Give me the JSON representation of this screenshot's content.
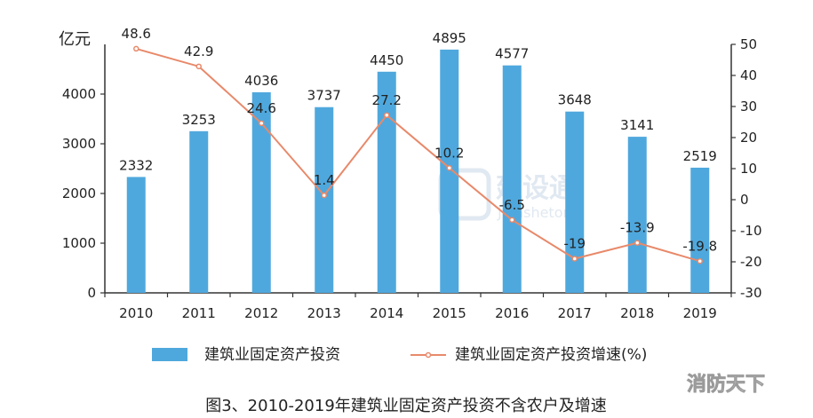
{
  "chart_data": {
    "type": "bar+line",
    "title": "",
    "caption": "图3、2010-2019年建筑业固定资产投资不含农户及增速",
    "y_left_unit": "亿元",
    "categories": [
      "2010",
      "2011",
      "2012",
      "2013",
      "2014",
      "2015",
      "2016",
      "2017",
      "2018",
      "2019"
    ],
    "series": [
      {
        "name": "建筑业固定资产投资",
        "type": "bar",
        "axis": "left",
        "values": [
          2332,
          3253,
          4036,
          3737,
          4450,
          4895,
          4577,
          3648,
          3141,
          2519
        ],
        "color": "#4fa8dd"
      },
      {
        "name": "建筑业固定资产投资增速(%)",
        "type": "line",
        "axis": "right",
        "values": [
          48.6,
          42.9,
          24.6,
          1.4,
          27.2,
          10.2,
          -6.5,
          -19,
          -13.9,
          -19.8
        ],
        "color": "#e8896a"
      }
    ],
    "y_left": {
      "min": 0,
      "max": 5000,
      "ticks": [
        0,
        1000,
        2000,
        3000,
        4000
      ]
    },
    "y_right": {
      "min": -30,
      "max": 50,
      "ticks": [
        50,
        40,
        30,
        20,
        10,
        0,
        -10,
        -20,
        -30
      ]
    },
    "legend_position": "bottom",
    "grid": false
  },
  "watermark": {
    "main": "建设通",
    "sub": "Jianshetong"
  },
  "corner_watermark": "消防天下"
}
